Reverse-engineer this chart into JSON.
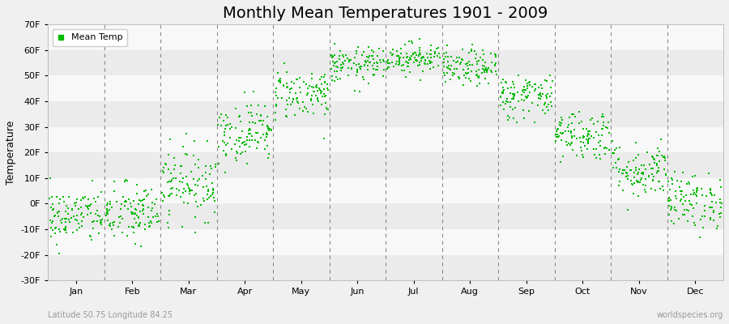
{
  "title": "Monthly Mean Temperatures 1901 - 2009",
  "ylabel": "Temperature",
  "xlabel_bottom_left": "Latitude 50.75 Longitude 84.25",
  "xlabel_bottom_right": "worldspecies.org",
  "months": [
    "Jan",
    "Feb",
    "Mar",
    "Apr",
    "May",
    "Jun",
    "Jul",
    "Aug",
    "Sep",
    "Oct",
    "Nov",
    "Dec"
  ],
  "ylim": [
    -30,
    70
  ],
  "yticks": [
    -30,
    -20,
    -10,
    0,
    10,
    20,
    30,
    40,
    50,
    60,
    70
  ],
  "ytick_labels": [
    "-30F",
    "-20F",
    "-10F",
    "0F",
    "10F",
    "20F",
    "30F",
    "40F",
    "50F",
    "60F",
    "70F"
  ],
  "n_years": 109,
  "dot_color": "#00bb00",
  "dot_size": 4,
  "background_color": "#f0f0f0",
  "band_colors": [
    "#ebebeb",
    "#f8f8f8"
  ],
  "legend_label": "Mean Temp",
  "title_fontsize": 14,
  "monthly_mean_temps_F": [
    -5.0,
    -4.0,
    8.0,
    28.0,
    43.0,
    54.0,
    57.0,
    53.0,
    42.0,
    27.0,
    13.0,
    1.0
  ],
  "monthly_std_temps_F": [
    5.5,
    6.0,
    7.0,
    6.0,
    5.0,
    3.5,
    3.0,
    3.5,
    4.5,
    5.0,
    5.5,
    5.5
  ],
  "seed": 42,
  "figwidth": 9.0,
  "figheight": 4.0,
  "dpi": 100
}
